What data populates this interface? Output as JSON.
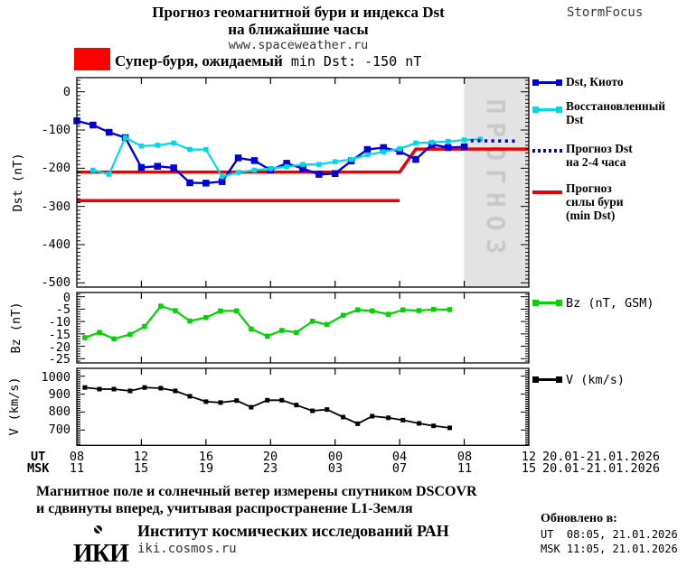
{
  "header": {
    "title_line1": "Прогноз геомагнитной бури и индекса Dst",
    "title_line2": "на ближайшие часы",
    "url": "www.spaceweather.ru",
    "brand": "StormFocus"
  },
  "banner": {
    "bold": "Супер-буря, ожидаемый",
    "rest": "min Dst: -150 nT"
  },
  "legend": {
    "kyoto": "Dst, Киото",
    "restored": "Восстановленный\nDst",
    "forecast": "Прогноз Dst\nна 2-4 часа",
    "storm": "Прогноз\nсилы бури\n(min Dst)",
    "bz": "Bz (nT, GSM)",
    "v": "V (km/s)"
  },
  "prognoz_label": "ПРОГНОЗ",
  "axes": {
    "dst_label": "Dst (nT)",
    "bz_label": "Bz (nT)",
    "v_label": "V (km/s)",
    "dst_ticks": [
      "0",
      "-100",
      "-200",
      "-300",
      "-400",
      "-500"
    ],
    "bz_ticks": [
      "0",
      "-5",
      "-10",
      "-15",
      "-20",
      "-25"
    ],
    "v_ticks": [
      "1000",
      "900",
      "800",
      "700"
    ],
    "ut_label": "UT",
    "msk_label": "MSK",
    "ut_hours": [
      "08",
      "12",
      "16",
      "20",
      "00",
      "04",
      "08",
      "12"
    ],
    "msk_hours": [
      "11",
      "15",
      "19",
      "23",
      "03",
      "07",
      "11",
      "15"
    ],
    "ut_date": "20.01-21.01.2026",
    "msk_date": "20.01-21.01.2026"
  },
  "footer": {
    "note1": "Магнитное поле и солнечный ветер измерены спутником DSCOVR",
    "note2": "и сдвинуты вперед, учитывая распространение L1-Земля",
    "logo": "ИКИ",
    "institute": "Институт космических исследований РАН",
    "site": "iki.cosmos.ru",
    "updated_label": "Обновлено в:",
    "updated_ut": "UT  08:05, 21.01.2026",
    "updated_msk": "MSK 11:05, 21.01.2026"
  },
  "colors": {
    "banner": "#ff0000",
    "storm": "#ef0000",
    "kyoto": "#0000d8",
    "restored": "#00d8e8",
    "forecast": "#0000d8",
    "bz": "#00d400",
    "v": "#000000",
    "band": "#e3e3e3",
    "prognoz_text": "#c9c9c9"
  },
  "chart_data": [
    {
      "type": "line",
      "title": "Dst index, observed / restored / forecast",
      "ylabel": "Dst (nT)",
      "ylim": [
        -500,
        37
      ],
      "x_unit": "hours after 08:00 UT 20.01.2026",
      "xlim": [
        0,
        28
      ],
      "x_major_ticks_ut": [
        "08",
        "12",
        "16",
        "20",
        "00",
        "04",
        "08",
        "12"
      ],
      "forecast_band_hours": [
        24,
        28
      ],
      "series": [
        {
          "name": "Dst, Киото",
          "color": "#0000d8",
          "marker": "square",
          "hours": [
            0,
            1,
            2,
            3,
            4,
            5,
            6,
            7,
            8,
            9,
            10,
            11,
            12,
            13,
            14,
            15,
            16,
            17,
            18,
            19,
            20,
            21,
            22,
            23,
            24
          ],
          "values": [
            -76,
            -87,
            -106,
            -120,
            -198,
            -195,
            -199,
            -238,
            -239,
            -235,
            -173,
            -180,
            -205,
            -187,
            -201,
            -216,
            -214,
            -181,
            -151,
            -146,
            -156,
            -177,
            -138,
            -146,
            -144
          ]
        },
        {
          "name": "Восстановленный Dst",
          "color": "#00d8e8",
          "marker": "square",
          "hours": [
            1,
            2,
            3,
            4,
            5,
            6,
            7,
            8,
            9,
            10,
            11,
            12,
            13,
            14,
            15,
            16,
            17,
            18,
            19,
            20,
            21,
            22,
            23,
            24,
            25
          ],
          "values": [
            -205,
            -216,
            -120,
            -142,
            -140,
            -134,
            -151,
            -151,
            -222,
            -211,
            -205,
            -201,
            -196,
            -190,
            -190,
            -183,
            -177,
            -165,
            -157,
            -149,
            -134,
            -132,
            -130,
            -126,
            -124
          ]
        },
        {
          "name": "Прогноз Dst на 2-4 часа",
          "color": "#0000d8",
          "style": "dotted",
          "hours": [
            24.4,
            27.2
          ],
          "values": [
            -128,
            -129
          ]
        },
        {
          "name": "Прогноз силы бури (min Dst)",
          "color": "#ef0000",
          "hours": [
            0,
            20,
            21,
            28
          ],
          "values": [
            -210,
            -210,
            -150,
            -150
          ]
        },
        {
          "name": "storm-forecast-earlier-level",
          "color": "#ef0000",
          "hours": [
            0,
            20
          ],
          "values": [
            -285,
            -285
          ]
        }
      ]
    },
    {
      "type": "line",
      "title": "Bz (nT, GSM)",
      "ylabel": "Bz (nT)",
      "ylim": [
        -26.7,
        1.7
      ],
      "xlim": [
        0,
        28
      ],
      "series": [
        {
          "name": "Bz (nT, GSM)",
          "color": "#00d400",
          "marker": "square",
          "hours": [
            0.5,
            1.4,
            2.3,
            3.3,
            4.2,
            5.2,
            6.1,
            7.0,
            8.0,
            8.9,
            9.9,
            10.8,
            11.8,
            12.7,
            13.6,
            14.6,
            15.5,
            16.5,
            17.4,
            18.3,
            19.3,
            20.2,
            21.2,
            22.1,
            23.1
          ],
          "values": [
            -16.5,
            -14.4,
            -17,
            -15.2,
            -12,
            -3.8,
            -5.6,
            -9.8,
            -8.4,
            -5.7,
            -5.7,
            -13,
            -15.9,
            -13.6,
            -14.4,
            -9.9,
            -11.2,
            -7.5,
            -5.3,
            -5.7,
            -7.1,
            -5.3,
            -5.6,
            -5.1,
            -5.2
          ]
        }
      ]
    },
    {
      "type": "line",
      "title": "Solar wind speed",
      "ylabel": "V (km/s)",
      "ylim": [
        617,
        1044
      ],
      "xlim": [
        0,
        28
      ],
      "series": [
        {
          "name": "V (km/s)",
          "color": "#000000",
          "marker": "square",
          "hours": [
            0.5,
            1.4,
            2.3,
            3.3,
            4.2,
            5.2,
            6.1,
            7.0,
            8.0,
            8.9,
            9.9,
            10.8,
            11.8,
            12.7,
            13.6,
            14.6,
            15.5,
            16.5,
            17.4,
            18.3,
            19.3,
            20.2,
            21.2,
            22.1,
            23.1
          ],
          "values": [
            937,
            928,
            928,
            918,
            937,
            933,
            918,
            888,
            858,
            853,
            864,
            827,
            866,
            866,
            839,
            807,
            814,
            772,
            735,
            777,
            768,
            755,
            737,
            723,
            712
          ]
        }
      ]
    }
  ]
}
